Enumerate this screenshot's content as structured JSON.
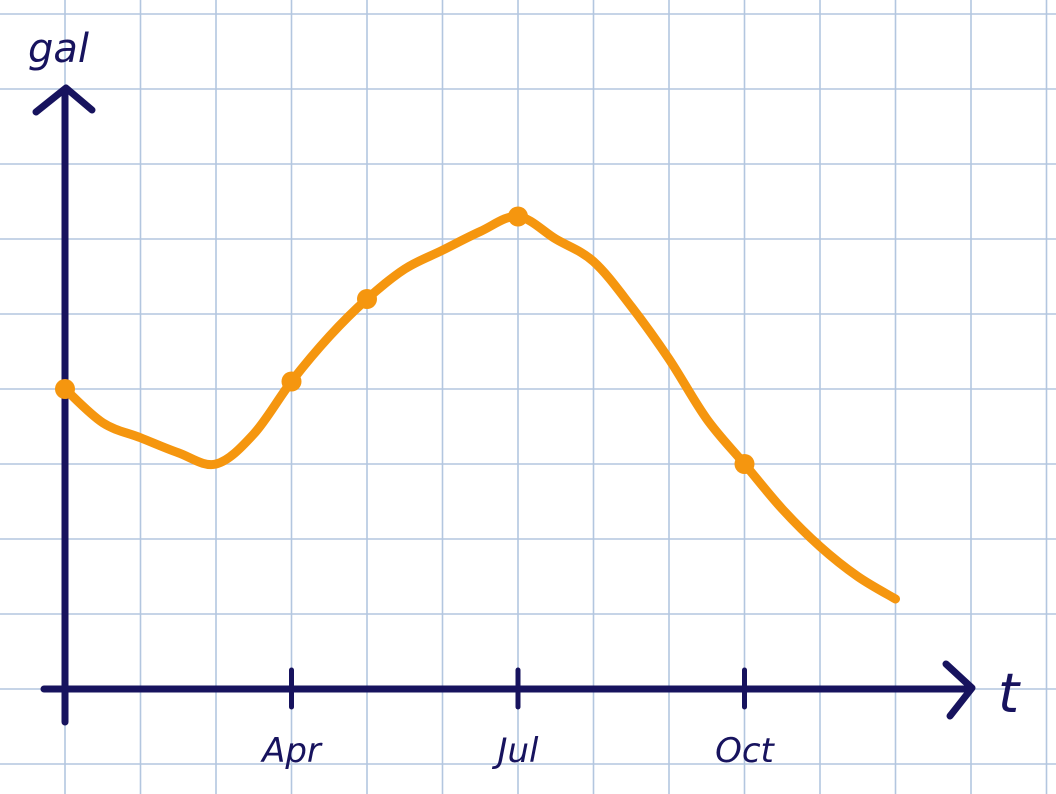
{
  "chart_data": {
    "type": "line",
    "title": "",
    "xlabel": "t",
    "ylabel": "gal",
    "xticks": [
      {
        "month": 4,
        "label": "Apr"
      },
      {
        "month": 7,
        "label": "Jul"
      },
      {
        "month": 10,
        "label": "Oct"
      }
    ],
    "xlim": [
      1,
      12
    ],
    "ylim": [
      0,
      8
    ],
    "grid": true,
    "series": [
      {
        "x": [
          1,
          1.5,
          2,
          2.5,
          3,
          3.5,
          4,
          4.5,
          5,
          5.5,
          6,
          6.5,
          7,
          7.5,
          8,
          8.5,
          9,
          9.5,
          10,
          10.5,
          11,
          11.5,
          12
        ],
        "y": [
          4.0,
          3.55,
          3.35,
          3.15,
          3.0,
          3.4,
          4.1,
          4.7,
          5.2,
          5.6,
          5.85,
          6.1,
          6.3,
          6.0,
          5.7,
          5.1,
          4.4,
          3.6,
          3.0,
          2.4,
          1.9,
          1.5,
          1.2
        ],
        "color": "#f5960f",
        "marked_points": [
          {
            "x": 1,
            "y": 4.0
          },
          {
            "x": 4,
            "y": 4.1
          },
          {
            "x": 5,
            "y": 5.2
          },
          {
            "x": 7,
            "y": 6.3
          },
          {
            "x": 10,
            "y": 3.0
          }
        ]
      }
    ]
  },
  "colors": {
    "grid": "#b3c6df",
    "axis": "#17135e",
    "curve": "#f5960f",
    "background": "#ffffff"
  }
}
